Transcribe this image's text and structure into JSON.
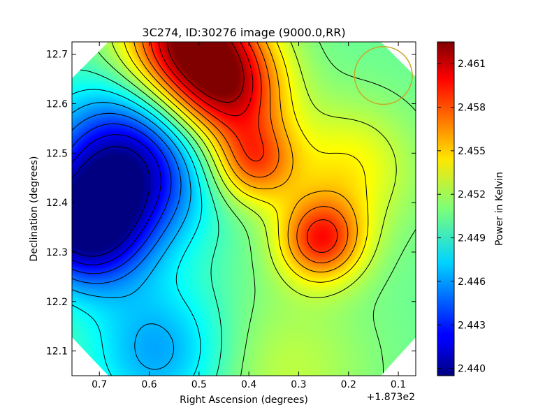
{
  "chart_data": {
    "type": "heatmap",
    "title": "3C274, ID:30276 image (9000.0,RR)",
    "xlabel": "Right Ascension (degrees)",
    "ylabel": "Declination (degrees)",
    "x_offset_label": "+1.873e2",
    "x_ticks": [
      "0.7",
      "0.6",
      "0.5",
      "0.4",
      "0.3",
      "0.2",
      "0.1"
    ],
    "y_ticks": [
      "12.1",
      "12.2",
      "12.3",
      "12.4",
      "12.5",
      "12.6",
      "12.7"
    ],
    "xlim": [
      0.755,
      0.065
    ],
    "ylim": [
      12.05,
      12.725
    ],
    "colorbar": {
      "label": "Power in Kelvin",
      "range": [
        2.4395,
        2.4625
      ],
      "ticks": [
        "2.440",
        "2.443",
        "2.446",
        "2.449",
        "2.452",
        "2.455",
        "2.458",
        "2.461"
      ]
    },
    "contours": true,
    "beam_circle": {
      "x": 0.13,
      "y": 12.657,
      "radius_deg": 0.058,
      "color": "#c8a828"
    },
    "sources": [
      {
        "x": 0.52,
        "y": 12.73,
        "value": 2.4622,
        "spread": 0.09
      },
      {
        "x": 0.44,
        "y": 12.62,
        "value": 2.459,
        "spread": 0.08
      },
      {
        "x": 0.39,
        "y": 12.48,
        "value": 2.457,
        "spread": 0.06
      },
      {
        "x": 0.255,
        "y": 12.325,
        "value": 2.4585,
        "spread": 0.06
      },
      {
        "x": 0.2,
        "y": 12.47,
        "value": 2.454,
        "spread": 0.09
      },
      {
        "x": 0.33,
        "y": 12.06,
        "value": 2.4525,
        "spread": 0.12
      },
      {
        "x": 0.65,
        "y": 12.47,
        "value": 2.44,
        "spread": 0.11
      },
      {
        "x": 0.73,
        "y": 12.34,
        "value": 2.4415,
        "spread": 0.08
      },
      {
        "x": 0.58,
        "y": 12.1,
        "value": 2.446,
        "spread": 0.1
      },
      {
        "x": 0.3,
        "y": 12.64,
        "value": 2.4505,
        "spread": 0.06
      }
    ],
    "background_value": 2.4505
  }
}
